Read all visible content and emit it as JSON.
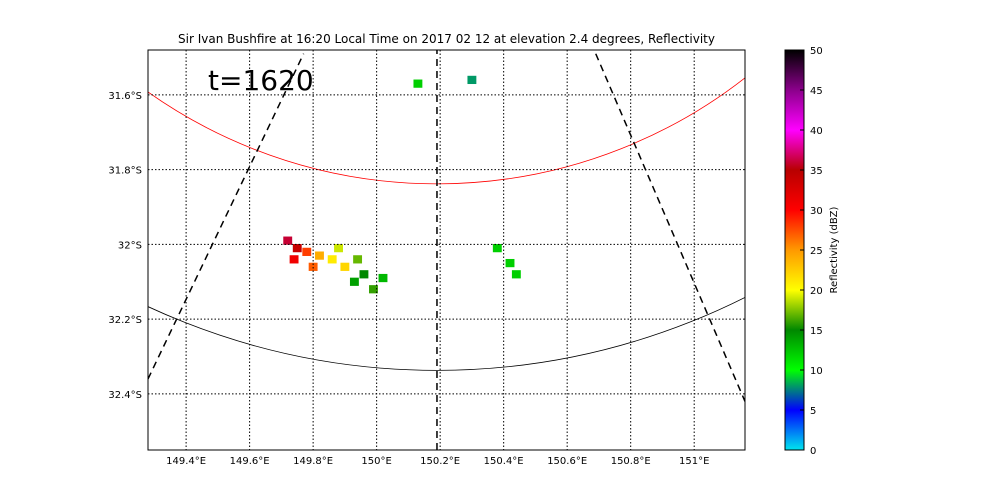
{
  "chart_data": {
    "type": "heatmap",
    "title": "Sir Ivan Bushfire at 16:20 Local Time on 2017 02 12 at elevation 2.4 degrees, Reflectivity",
    "annotation": "t=1620",
    "x_ticks": [
      "149.4°E",
      "149.6°E",
      "149.8°E",
      "150°E",
      "150.2°E",
      "150.4°E",
      "150.6°E",
      "150.8°E",
      "151°E"
    ],
    "x_tick_values": [
      149.4,
      149.6,
      149.8,
      150.0,
      150.2,
      150.4,
      150.6,
      150.8,
      151.0
    ],
    "y_ticks": [
      "31.6°S",
      "31.8°S",
      "32°S",
      "32.2°S",
      "32.4°S"
    ],
    "y_tick_values": [
      -31.6,
      -31.8,
      -32.0,
      -32.2,
      -32.4
    ],
    "xlim": [
      149.28,
      151.16
    ],
    "ylim": [
      -32.55,
      -31.48
    ],
    "grid": true,
    "colorbar": {
      "label": "Reflectivity (dBZ)",
      "ticks": [
        0,
        5,
        10,
        15,
        20,
        25,
        30,
        35,
        40,
        45,
        50
      ],
      "range": [
        0,
        50
      ],
      "stops": [
        "#00e5ee",
        "#0000ff",
        "#00ff00",
        "#008800",
        "#ffff00",
        "#ff9900",
        "#ff0000",
        "#b80000",
        "#ff00ff",
        "#8b008b",
        "#000000"
      ]
    },
    "radar_center": {
      "lon": 150.19,
      "lat": -30.5
    },
    "range_rings": [
      {
        "color": "#ff0000",
        "lat_bottom": -31.92,
        "lon_edge": 149.28,
        "lat_at_edge": -31.49
      },
      {
        "color": "#000000",
        "lat_bottom": -32.37,
        "lon_edge": 149.28,
        "lat_at_edge": -32.13
      }
    ],
    "radials": [
      {
        "lon1": 149.28,
        "lat1": -32.36,
        "lon2": 149.77,
        "lat2": -31.49
      },
      {
        "lon1": 150.19,
        "lat1": -32.55,
        "lon2": 150.19,
        "lat2": -31.48
      },
      {
        "lon1": 150.69,
        "lat1": -31.49,
        "lon2": 151.16,
        "lat2": -32.42
      }
    ],
    "echo_cells": [
      {
        "lon": 149.72,
        "lat": -31.99,
        "dbz": 36
      },
      {
        "lon": 149.75,
        "lat": -32.01,
        "dbz": 34
      },
      {
        "lon": 149.74,
        "lat": -32.04,
        "dbz": 31
      },
      {
        "lon": 149.78,
        "lat": -32.02,
        "dbz": 28
      },
      {
        "lon": 149.82,
        "lat": -32.03,
        "dbz": 24
      },
      {
        "lon": 149.8,
        "lat": -32.06,
        "dbz": 27
      },
      {
        "lon": 149.86,
        "lat": -32.04,
        "dbz": 21
      },
      {
        "lon": 149.88,
        "lat": -32.01,
        "dbz": 19
      },
      {
        "lon": 149.9,
        "lat": -32.06,
        "dbz": 22
      },
      {
        "lon": 149.94,
        "lat": -32.04,
        "dbz": 17
      },
      {
        "lon": 149.96,
        "lat": -32.08,
        "dbz": 15
      },
      {
        "lon": 149.93,
        "lat": -32.1,
        "dbz": 14
      },
      {
        "lon": 149.99,
        "lat": -32.12,
        "dbz": 16
      },
      {
        "lon": 150.02,
        "lat": -32.09,
        "dbz": 13
      },
      {
        "lon": 150.38,
        "lat": -32.01,
        "dbz": 12
      },
      {
        "lon": 150.42,
        "lat": -32.05,
        "dbz": 12
      },
      {
        "lon": 150.44,
        "lat": -32.08,
        "dbz": 12
      },
      {
        "lon": 150.3,
        "lat": -31.56,
        "dbz": 8
      },
      {
        "lon": 150.13,
        "lat": -31.57,
        "dbz": 12
      }
    ]
  }
}
